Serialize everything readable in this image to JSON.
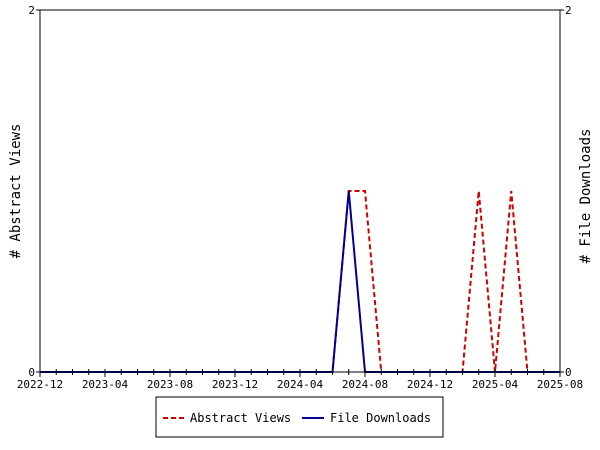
{
  "chart_data": {
    "type": "line",
    "x_tick_labels": [
      "2022-12",
      "2023-04",
      "2023-08",
      "2023-12",
      "2024-04",
      "2024-08",
      "2024-12",
      "2025-04",
      "2025-08"
    ],
    "xlim": [
      "2022-12",
      "2025-08"
    ],
    "ylabel_left": "# Abstract Views",
    "ylabel_right": "# File Downloads",
    "ylim_left": [
      0,
      2
    ],
    "ylim_right": [
      0,
      2
    ],
    "y_tick_labels_left": [
      "0",
      "2"
    ],
    "y_tick_labels_right": [
      "0",
      "2"
    ],
    "grid": false,
    "legend_position": "bottom-center",
    "series": [
      {
        "name": "Abstract Views",
        "color": "#cc0000",
        "style": "dashed",
        "axis": "left",
        "points": [
          [
            "2022-12",
            0
          ],
          [
            "2023-01",
            0
          ],
          [
            "2023-02",
            0
          ],
          [
            "2023-03",
            0
          ],
          [
            "2023-04",
            0
          ],
          [
            "2023-05",
            0
          ],
          [
            "2023-06",
            0
          ],
          [
            "2023-07",
            0
          ],
          [
            "2023-08",
            0
          ],
          [
            "2023-09",
            0
          ],
          [
            "2023-10",
            0
          ],
          [
            "2023-11",
            0
          ],
          [
            "2023-12",
            0
          ],
          [
            "2024-01",
            0
          ],
          [
            "2024-02",
            0
          ],
          [
            "2024-03",
            0
          ],
          [
            "2024-04",
            0
          ],
          [
            "2024-05",
            0
          ],
          [
            "2024-06",
            0
          ],
          [
            "2024-07",
            1
          ],
          [
            "2024-08",
            1
          ],
          [
            "2024-09",
            0
          ],
          [
            "2024-10",
            0
          ],
          [
            "2024-11",
            0
          ],
          [
            "2024-12",
            0
          ],
          [
            "2025-01",
            0
          ],
          [
            "2025-02",
            0
          ],
          [
            "2025-03",
            1
          ],
          [
            "2025-04",
            0
          ],
          [
            "2025-05",
            1
          ],
          [
            "2025-06",
            0
          ],
          [
            "2025-07",
            0
          ],
          [
            "2025-08",
            0
          ]
        ]
      },
      {
        "name": "File Downloads",
        "color": "#000099",
        "style": "solid",
        "axis": "right",
        "points": [
          [
            "2022-12",
            0
          ],
          [
            "2023-01",
            0
          ],
          [
            "2023-02",
            0
          ],
          [
            "2023-03",
            0
          ],
          [
            "2023-04",
            0
          ],
          [
            "2023-05",
            0
          ],
          [
            "2023-06",
            0
          ],
          [
            "2023-07",
            0
          ],
          [
            "2023-08",
            0
          ],
          [
            "2023-09",
            0
          ],
          [
            "2023-10",
            0
          ],
          [
            "2023-11",
            0
          ],
          [
            "2023-12",
            0
          ],
          [
            "2024-01",
            0
          ],
          [
            "2024-02",
            0
          ],
          [
            "2024-03",
            0
          ],
          [
            "2024-04",
            0
          ],
          [
            "2024-05",
            0
          ],
          [
            "2024-06",
            0
          ],
          [
            "2024-07",
            1
          ],
          [
            "2024-08",
            0
          ],
          [
            "2024-09",
            0
          ],
          [
            "2024-10",
            0
          ],
          [
            "2024-11",
            0
          ],
          [
            "2024-12",
            0
          ],
          [
            "2025-01",
            0
          ],
          [
            "2025-02",
            0
          ],
          [
            "2025-03",
            0
          ],
          [
            "2025-04",
            0
          ],
          [
            "2025-05",
            0
          ],
          [
            "2025-06",
            0
          ],
          [
            "2025-07",
            0
          ],
          [
            "2025-08",
            0
          ]
        ]
      }
    ]
  }
}
